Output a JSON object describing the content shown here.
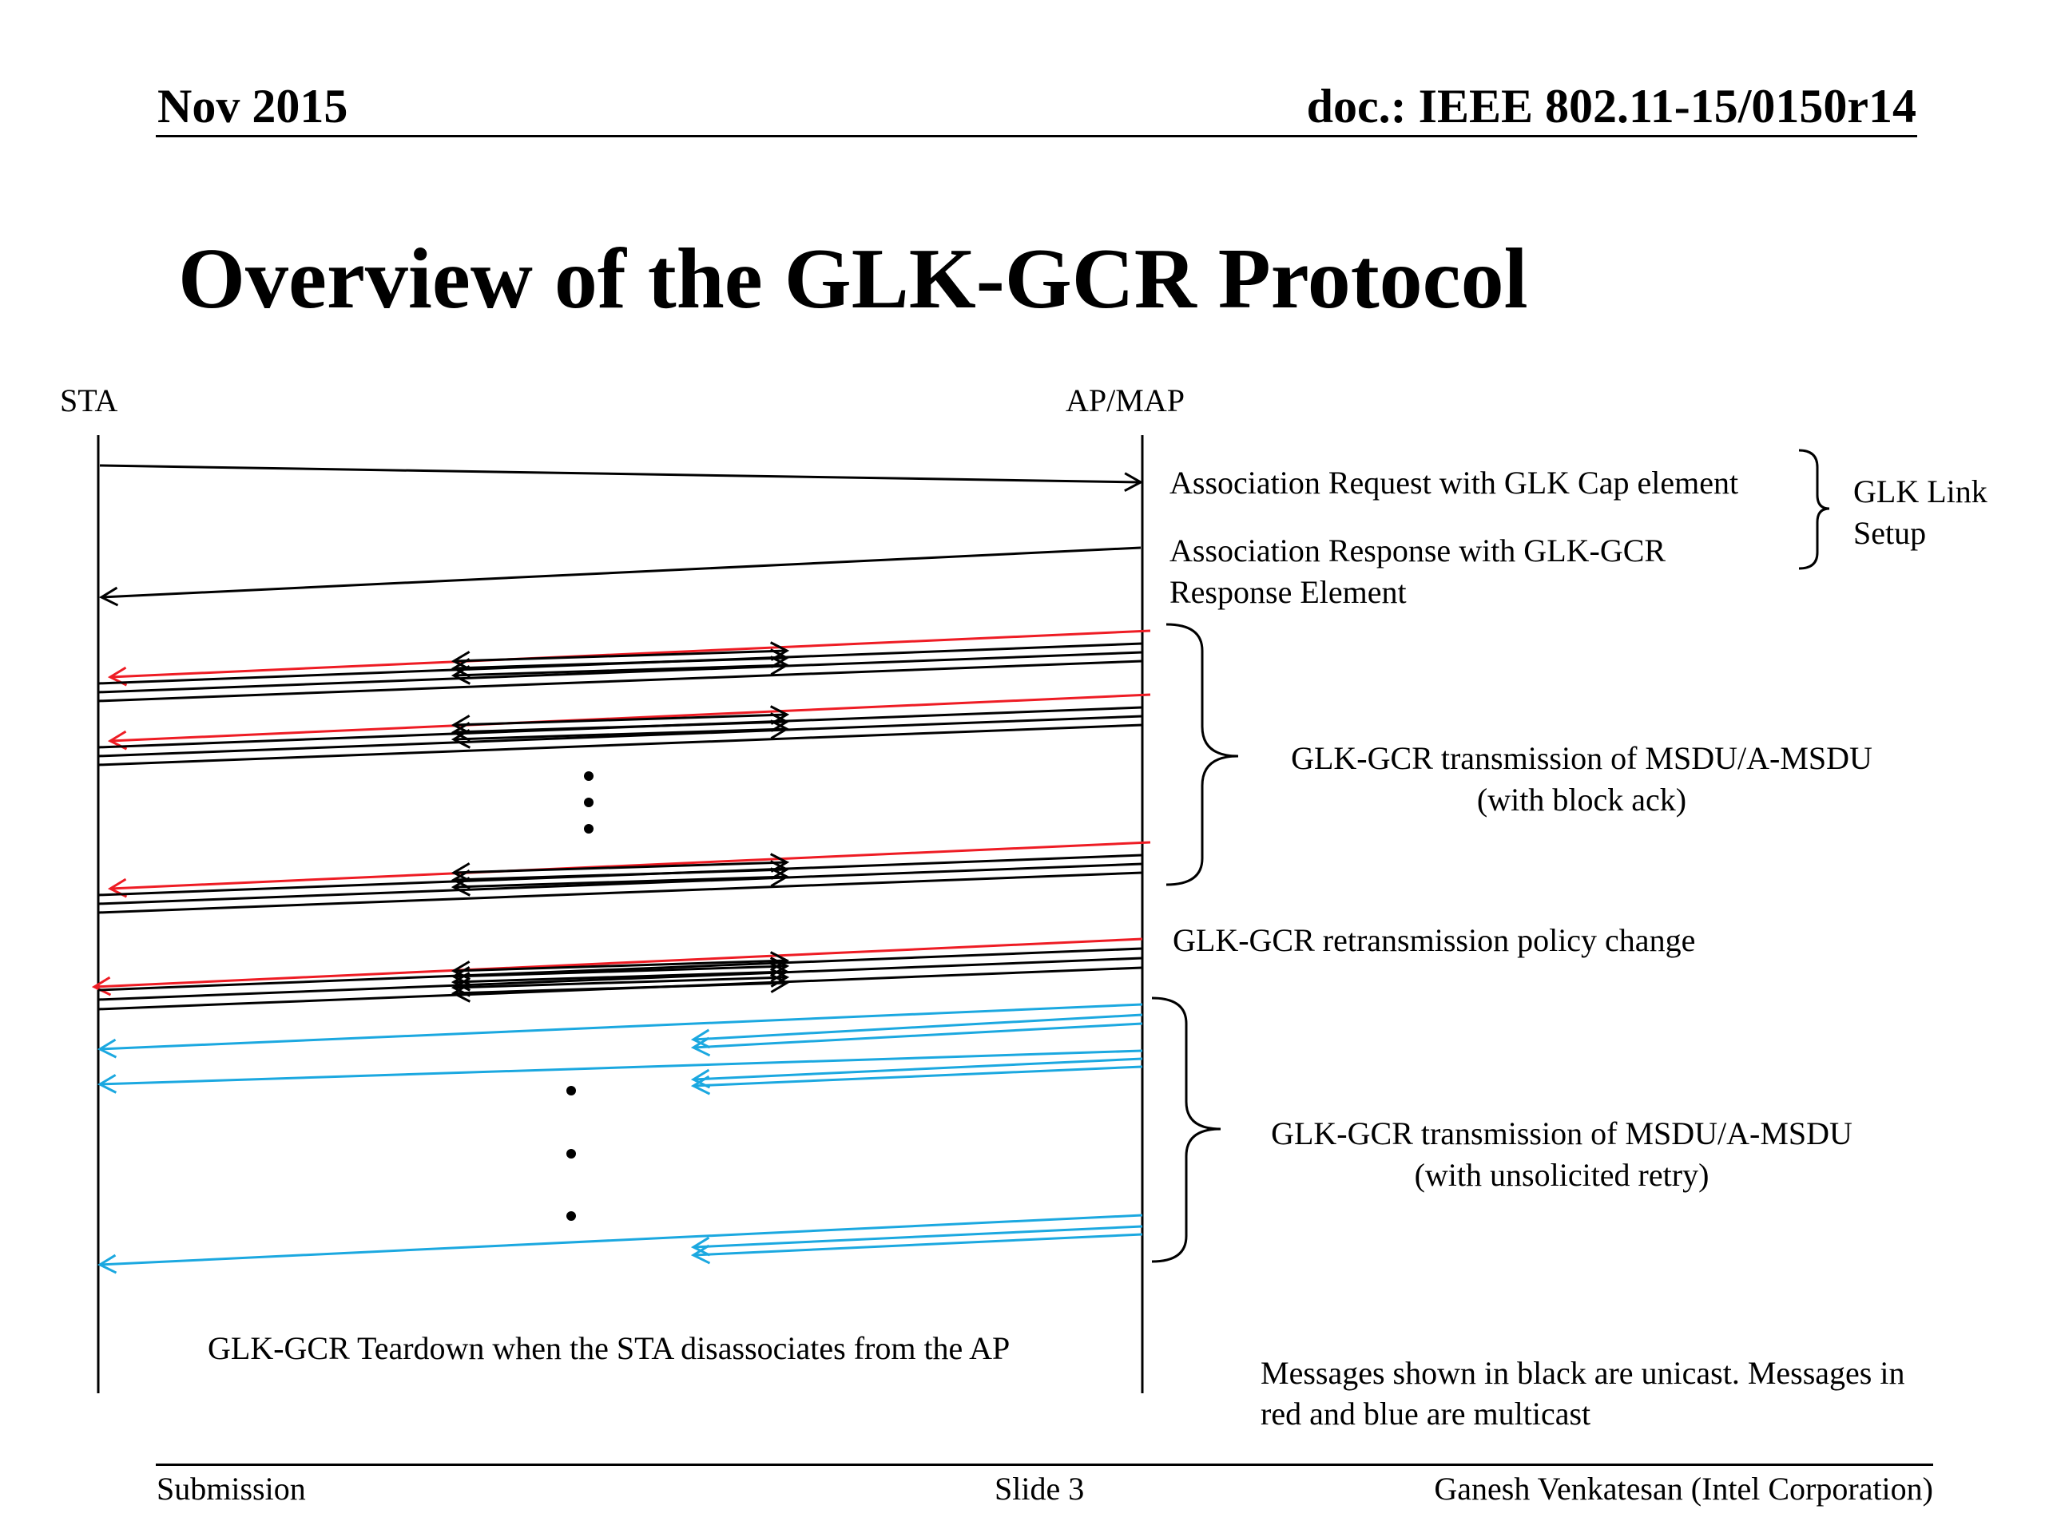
{
  "header": {
    "date": "Nov 2015",
    "doc_id": "doc.: IEEE 802.11-15/0150r14"
  },
  "slide_title": "Overview of the GLK-GCR Protocol",
  "diagram": {
    "lifeline_left": "STA",
    "lifeline_right": "AP/MAP",
    "labels": {
      "assoc_request": "Association Request with GLK Cap element",
      "assoc_response_line1": "Association Response with GLK-GCR",
      "assoc_response_line2": "Response Element",
      "link_setup_line1": "GLK Link",
      "link_setup_line2": "Setup",
      "block_ack_line1": "GLK-GCR transmission of MSDU/A-MSDU",
      "block_ack_line2": "(with block ack)",
      "policy_change": "GLK-GCR retransmission policy change",
      "unsolicited_line1": "GLK-GCR transmission of MSDU/A-MSDU",
      "unsolicited_line2": "(with unsolicited retry)",
      "teardown": "GLK-GCR Teardown when the STA disassociates from the AP",
      "legend_line1": "Messages shown in black are unicast. Messages in",
      "legend_line2": "red and blue are multicast"
    },
    "colors": {
      "unicast": "#000000",
      "multicast_red": "#ee1c24",
      "multicast_blue": "#1ba8e0"
    }
  },
  "footer": {
    "left": "Submission",
    "center": "Slide 3",
    "right": "Ganesh Venkatesan (Intel Corporation)"
  }
}
